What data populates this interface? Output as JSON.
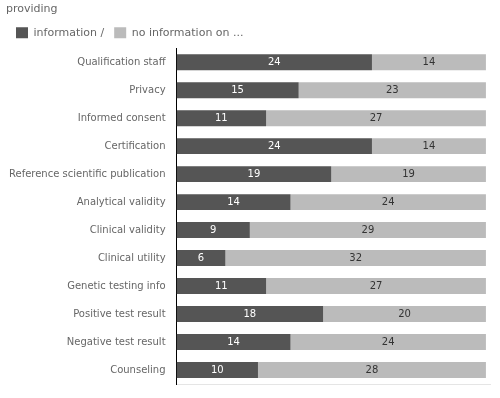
{
  "chart_data": {
    "type": "bar",
    "orientation": "horizontal",
    "stacked": true,
    "categories": [
      "Qualification staff",
      "Privacy",
      "Informed consent",
      "Certification",
      "Reference scientific publication",
      "Analytical validity",
      "Clinical validity",
      "Clinical utility",
      "Genetic testing info",
      "Positive test result",
      "Negative test result",
      "Counseling"
    ],
    "series": [
      {
        "name": "information /",
        "color": "#555555",
        "values": [
          24,
          15,
          11,
          24,
          19,
          14,
          9,
          6,
          11,
          18,
          14,
          10
        ]
      },
      {
        "name": "no information on ...",
        "color": "#bbbbbb",
        "values": [
          14,
          23,
          27,
          14,
          19,
          24,
          29,
          32,
          27,
          20,
          24,
          28
        ]
      }
    ],
    "legend_title": "providing",
    "legend": "upper left",
    "xlim": [
      0,
      38.5
    ],
    "tick_labels": "y",
    "data_labels": true,
    "grid": false
  }
}
